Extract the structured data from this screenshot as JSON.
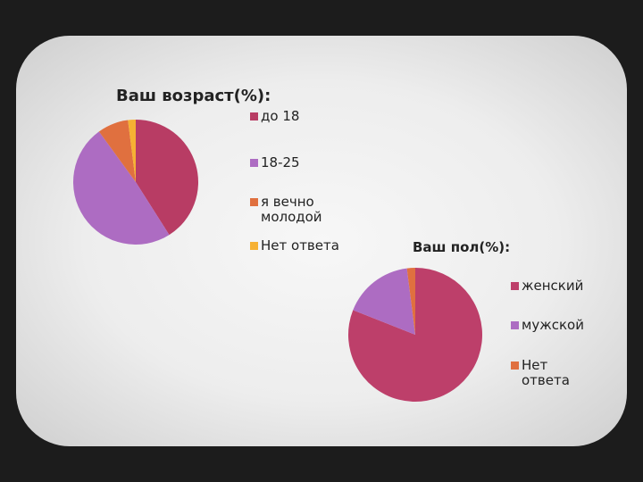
{
  "chart_data": [
    {
      "type": "pie",
      "title": "Ваш возраст(%):",
      "categories": [
        "до 18",
        "18-25",
        "я вечно молодой",
        "Нет ответа"
      ],
      "values": [
        41,
        49,
        8,
        2
      ],
      "colors": [
        "#b83c64",
        "#ad6cc2",
        "#e0703f",
        "#f6b133"
      ]
    },
    {
      "type": "pie",
      "title": "Ваш пол(%):",
      "categories": [
        "женский",
        "мужской",
        "Нет ответа"
      ],
      "values": [
        81,
        17,
        2
      ],
      "colors": [
        "#bd3f6a",
        "#ad6cc2",
        "#e0703f"
      ]
    }
  ]
}
